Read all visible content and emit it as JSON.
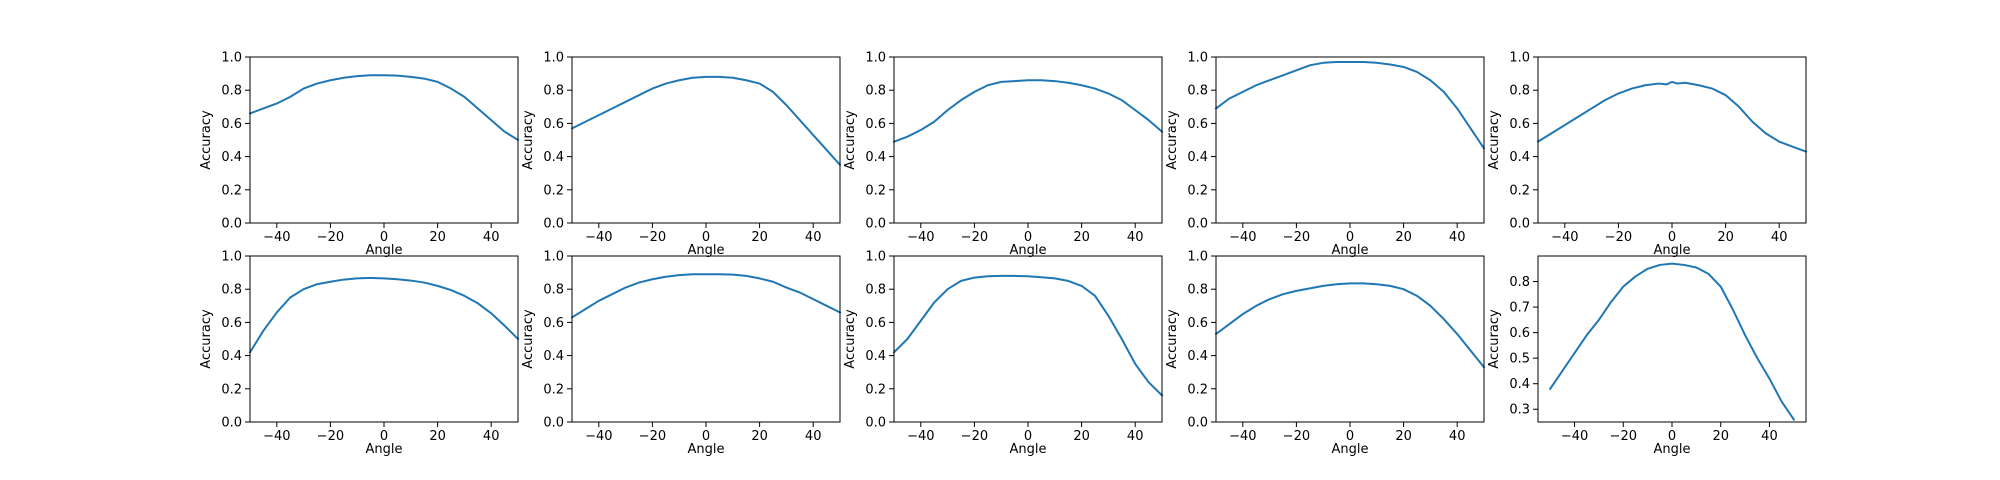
{
  "chart_data": [
    {
      "type": "line",
      "xlabel": "Angle",
      "ylabel": "Accuracy",
      "xlim": [
        -50,
        50
      ],
      "ylim": [
        0,
        1
      ],
      "xticks": [
        -40,
        -20,
        0,
        20,
        40
      ],
      "yticks": [
        0,
        0.2,
        0.4,
        0.6,
        0.8,
        1.0
      ],
      "ytick_labels": [
        "0.0",
        "0.2",
        "0.4",
        "0.6",
        "0.8",
        "1.0"
      ],
      "grid": false,
      "x": [
        -50,
        -45,
        -40,
        -35,
        -30,
        -25,
        -20,
        -15,
        -10,
        -5,
        0,
        5,
        10,
        15,
        20,
        25,
        30,
        35,
        40,
        45,
        50
      ],
      "y": [
        0.66,
        0.69,
        0.72,
        0.76,
        0.81,
        0.84,
        0.86,
        0.875,
        0.885,
        0.89,
        0.89,
        0.888,
        0.88,
        0.87,
        0.85,
        0.81,
        0.76,
        0.69,
        0.62,
        0.55,
        0.5
      ]
    },
    {
      "type": "line",
      "xlabel": "Angle",
      "ylabel": "Accuracy",
      "xlim": [
        -50,
        50
      ],
      "ylim": [
        0,
        1
      ],
      "xticks": [
        -40,
        -20,
        0,
        20,
        40
      ],
      "yticks": [
        0,
        0.2,
        0.4,
        0.6,
        0.8,
        1.0
      ],
      "ytick_labels": [
        "0.0",
        "0.2",
        "0.4",
        "0.6",
        "0.8",
        "1.0"
      ],
      "grid": false,
      "x": [
        -50,
        -45,
        -40,
        -35,
        -30,
        -25,
        -20,
        -15,
        -10,
        -5,
        0,
        5,
        10,
        15,
        20,
        25,
        30,
        35,
        40,
        45,
        50
      ],
      "y": [
        0.57,
        0.61,
        0.65,
        0.69,
        0.73,
        0.77,
        0.81,
        0.84,
        0.86,
        0.875,
        0.88,
        0.88,
        0.875,
        0.86,
        0.84,
        0.79,
        0.71,
        0.62,
        0.53,
        0.44,
        0.35
      ]
    },
    {
      "type": "line",
      "xlabel": "Angle",
      "ylabel": "Accuracy",
      "xlim": [
        -50,
        50
      ],
      "ylim": [
        0,
        1
      ],
      "xticks": [
        -40,
        -20,
        0,
        20,
        40
      ],
      "yticks": [
        0,
        0.2,
        0.4,
        0.6,
        0.8,
        1.0
      ],
      "ytick_labels": [
        "0.0",
        "0.2",
        "0.4",
        "0.6",
        "0.8",
        "1.0"
      ],
      "grid": false,
      "x": [
        -50,
        -45,
        -40,
        -35,
        -30,
        -25,
        -20,
        -15,
        -10,
        -5,
        0,
        5,
        10,
        15,
        20,
        25,
        30,
        35,
        40,
        45,
        50
      ],
      "y": [
        0.49,
        0.52,
        0.56,
        0.61,
        0.68,
        0.74,
        0.79,
        0.83,
        0.85,
        0.855,
        0.86,
        0.86,
        0.855,
        0.845,
        0.83,
        0.81,
        0.78,
        0.74,
        0.68,
        0.62,
        0.55
      ]
    },
    {
      "type": "line",
      "xlabel": "Angle",
      "ylabel": "Accuracy",
      "xlim": [
        -50,
        50
      ],
      "ylim": [
        0,
        1
      ],
      "xticks": [
        -40,
        -20,
        0,
        20,
        40
      ],
      "yticks": [
        0,
        0.2,
        0.4,
        0.6,
        0.8,
        1.0
      ],
      "ytick_labels": [
        "0.0",
        "0.2",
        "0.4",
        "0.6",
        "0.8",
        "1.0"
      ],
      "grid": false,
      "x": [
        -50,
        -45,
        -40,
        -35,
        -30,
        -25,
        -20,
        -15,
        -10,
        -5,
        0,
        5,
        10,
        15,
        20,
        25,
        30,
        35,
        40,
        45,
        50
      ],
      "y": [
        0.69,
        0.75,
        0.79,
        0.83,
        0.86,
        0.89,
        0.92,
        0.95,
        0.965,
        0.97,
        0.97,
        0.97,
        0.965,
        0.955,
        0.94,
        0.91,
        0.86,
        0.79,
        0.69,
        0.57,
        0.45
      ]
    },
    {
      "type": "line",
      "xlabel": "Angle",
      "ylabel": "Accuracy",
      "xlim": [
        -50,
        50
      ],
      "ylim": [
        0,
        1
      ],
      "xticks": [
        -40,
        -20,
        0,
        20,
        40
      ],
      "yticks": [
        0,
        0.2,
        0.4,
        0.6,
        0.8,
        1.0
      ],
      "ytick_labels": [
        "0.0",
        "0.2",
        "0.4",
        "0.6",
        "0.8",
        "1.0"
      ],
      "grid": false,
      "x": [
        -50,
        -45,
        -40,
        -35,
        -30,
        -25,
        -20,
        -15,
        -10,
        -5,
        -2,
        0,
        2,
        5,
        10,
        15,
        20,
        25,
        30,
        35,
        40,
        45,
        50
      ],
      "y": [
        0.49,
        0.54,
        0.59,
        0.64,
        0.69,
        0.74,
        0.78,
        0.81,
        0.83,
        0.84,
        0.835,
        0.85,
        0.84,
        0.845,
        0.83,
        0.81,
        0.77,
        0.7,
        0.61,
        0.54,
        0.49,
        0.46,
        0.43
      ]
    },
    {
      "type": "line",
      "xlabel": "Angle",
      "ylabel": "Accuracy",
      "xlim": [
        -50,
        50
      ],
      "ylim": [
        0,
        1
      ],
      "xticks": [
        -40,
        -20,
        0,
        20,
        40
      ],
      "yticks": [
        0,
        0.2,
        0.4,
        0.6,
        0.8,
        1.0
      ],
      "ytick_labels": [
        "0.0",
        "0.2",
        "0.4",
        "0.6",
        "0.8",
        "1.0"
      ],
      "grid": false,
      "x": [
        -50,
        -45,
        -40,
        -35,
        -30,
        -25,
        -20,
        -15,
        -10,
        -5,
        0,
        5,
        10,
        15,
        20,
        25,
        30,
        35,
        40,
        45,
        50
      ],
      "y": [
        0.42,
        0.55,
        0.66,
        0.75,
        0.8,
        0.83,
        0.845,
        0.858,
        0.865,
        0.868,
        0.865,
        0.86,
        0.852,
        0.84,
        0.82,
        0.795,
        0.76,
        0.715,
        0.655,
        0.58,
        0.5
      ]
    },
    {
      "type": "line",
      "xlabel": "Angle",
      "ylabel": "Accuracy",
      "xlim": [
        -50,
        50
      ],
      "ylim": [
        0,
        1
      ],
      "xticks": [
        -40,
        -20,
        0,
        20,
        40
      ],
      "yticks": [
        0,
        0.2,
        0.4,
        0.6,
        0.8,
        1.0
      ],
      "ytick_labels": [
        "0.0",
        "0.2",
        "0.4",
        "0.6",
        "0.8",
        "1.0"
      ],
      "grid": false,
      "x": [
        -50,
        -45,
        -40,
        -35,
        -30,
        -25,
        -20,
        -15,
        -10,
        -5,
        0,
        5,
        10,
        15,
        20,
        25,
        30,
        35,
        40,
        45,
        50
      ],
      "y": [
        0.63,
        0.68,
        0.73,
        0.77,
        0.81,
        0.84,
        0.86,
        0.875,
        0.885,
        0.89,
        0.89,
        0.89,
        0.888,
        0.88,
        0.865,
        0.845,
        0.81,
        0.78,
        0.74,
        0.7,
        0.66
      ]
    },
    {
      "type": "line",
      "xlabel": "Angle",
      "ylabel": "Accuracy",
      "xlim": [
        -50,
        50
      ],
      "ylim": [
        0,
        1
      ],
      "xticks": [
        -40,
        -20,
        0,
        20,
        40
      ],
      "yticks": [
        0,
        0.2,
        0.4,
        0.6,
        0.8,
        1.0
      ],
      "ytick_labels": [
        "0.0",
        "0.2",
        "0.4",
        "0.6",
        "0.8",
        "1.0"
      ],
      "grid": false,
      "x": [
        -50,
        -45,
        -40,
        -35,
        -30,
        -25,
        -20,
        -15,
        -10,
        -5,
        0,
        5,
        10,
        15,
        20,
        25,
        30,
        35,
        40,
        45,
        50
      ],
      "y": [
        0.42,
        0.5,
        0.61,
        0.72,
        0.8,
        0.85,
        0.87,
        0.878,
        0.88,
        0.88,
        0.878,
        0.872,
        0.865,
        0.85,
        0.82,
        0.76,
        0.64,
        0.5,
        0.35,
        0.24,
        0.16
      ]
    },
    {
      "type": "line",
      "xlabel": "Angle",
      "ylabel": "Accuracy",
      "xlim": [
        -50,
        50
      ],
      "ylim": [
        0,
        1
      ],
      "xticks": [
        -40,
        -20,
        0,
        20,
        40
      ],
      "yticks": [
        0,
        0.2,
        0.4,
        0.6,
        0.8,
        1.0
      ],
      "ytick_labels": [
        "0.0",
        "0.2",
        "0.4",
        "0.6",
        "0.8",
        "1.0"
      ],
      "grid": false,
      "x": [
        -50,
        -45,
        -40,
        -35,
        -30,
        -25,
        -20,
        -15,
        -10,
        -5,
        0,
        5,
        10,
        15,
        20,
        25,
        30,
        35,
        40,
        45,
        50
      ],
      "y": [
        0.53,
        0.59,
        0.65,
        0.7,
        0.74,
        0.77,
        0.79,
        0.805,
        0.82,
        0.83,
        0.835,
        0.835,
        0.83,
        0.82,
        0.8,
        0.76,
        0.7,
        0.62,
        0.53,
        0.43,
        0.33
      ]
    },
    {
      "type": "line",
      "xlabel": "Angle",
      "ylabel": "Accuracy",
      "xlim": [
        -55,
        55
      ],
      "ylim": [
        0.25,
        0.9
      ],
      "xticks": [
        -40,
        -20,
        0,
        20,
        40
      ],
      "yticks": [
        0.3,
        0.4,
        0.5,
        0.6,
        0.7,
        0.8
      ],
      "ytick_labels": [
        "0.3",
        "0.4",
        "0.5",
        "0.6",
        "0.7",
        "0.8"
      ],
      "grid": false,
      "x": [
        -50,
        -45,
        -40,
        -35,
        -30,
        -25,
        -20,
        -15,
        -10,
        -5,
        0,
        5,
        10,
        15,
        20,
        25,
        30,
        35,
        40,
        45,
        50
      ],
      "y": [
        0.38,
        0.45,
        0.52,
        0.59,
        0.65,
        0.72,
        0.78,
        0.82,
        0.85,
        0.865,
        0.87,
        0.865,
        0.855,
        0.83,
        0.78,
        0.69,
        0.59,
        0.5,
        0.42,
        0.33,
        0.26
      ]
    }
  ]
}
